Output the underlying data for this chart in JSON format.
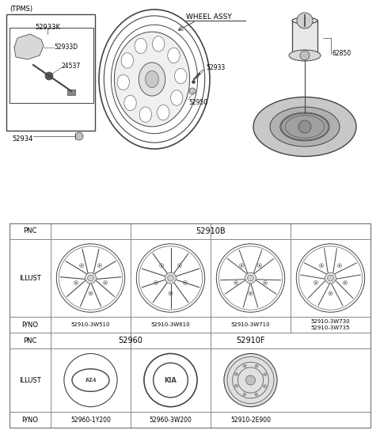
{
  "bg_color": "#ffffff",
  "line_color": "#444444",
  "text_color": "#000000",
  "border_color": "#888888",
  "tpms_label": "(TPMS)",
  "tpms_parts": [
    "52933K",
    "52933D",
    "24537",
    "52934"
  ],
  "wheel_assy_label": "WHEEL ASSY",
  "part_52933": "52933",
  "part_52950": "52950",
  "part_62850": "62850",
  "table_pnc1": "52910B",
  "table_pno1": [
    "52910-3W510",
    "52910-3W610",
    "52910-3W710",
    "52910-3W730\n52910-3W735"
  ],
  "table_pnc2_left": "52960",
  "table_pnc2_right": "52910F",
  "table_pno2": [
    "52960-1Y200",
    "52960-3W200",
    "52910-2E900"
  ],
  "row_labels": [
    "PNC",
    "ILLUST",
    "P/NO",
    "PNC",
    "ILLUST",
    "P/NO"
  ]
}
